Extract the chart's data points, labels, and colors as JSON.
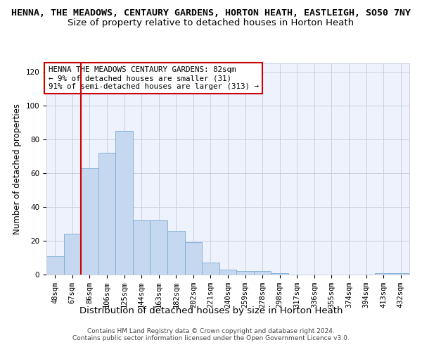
{
  "title": "HENNA, THE MEADOWS, CENTAURY GARDENS, HORTON HEATH, EASTLEIGH, SO50 7NY",
  "subtitle": "Size of property relative to detached houses in Horton Heath",
  "xlabel": "Distribution of detached houses by size in Horton Heath",
  "ylabel": "Number of detached properties",
  "categories": [
    "48sqm",
    "67sqm",
    "86sqm",
    "106sqm",
    "125sqm",
    "144sqm",
    "163sqm",
    "182sqm",
    "202sqm",
    "221sqm",
    "240sqm",
    "259sqm",
    "278sqm",
    "298sqm",
    "317sqm",
    "336sqm",
    "355sqm",
    "374sqm",
    "394sqm",
    "413sqm",
    "432sqm"
  ],
  "values": [
    11,
    24,
    63,
    72,
    85,
    32,
    32,
    26,
    19,
    7,
    3,
    2,
    2,
    1,
    0,
    0,
    0,
    0,
    0,
    1,
    1
  ],
  "bar_color": "#c5d8f0",
  "bar_edge_color": "#7aadd4",
  "red_line_x": 2.0,
  "annotation_text": "HENNA THE MEADOWS CENTAURY GARDENS: 82sqm\n← 9% of detached houses are smaller (31)\n91% of semi-detached houses are larger (313) →",
  "annotation_box_color": "#ffffff",
  "annotation_box_edge": "#cc0000",
  "ylim": [
    0,
    125
  ],
  "yticks": [
    0,
    20,
    40,
    60,
    80,
    100,
    120
  ],
  "footer_line1": "Contains HM Land Registry data © Crown copyright and database right 2024.",
  "footer_line2": "Contains public sector information licensed under the Open Government Licence v3.0.",
  "bg_color": "#edf2fc",
  "grid_color": "#c8d0e0",
  "title_fontsize": 9.5,
  "subtitle_fontsize": 9.5,
  "tick_fontsize": 7.5,
  "ylabel_fontsize": 8.5,
  "xlabel_fontsize": 9.5,
  "annotation_fontsize": 7.8,
  "footer_fontsize": 6.5
}
